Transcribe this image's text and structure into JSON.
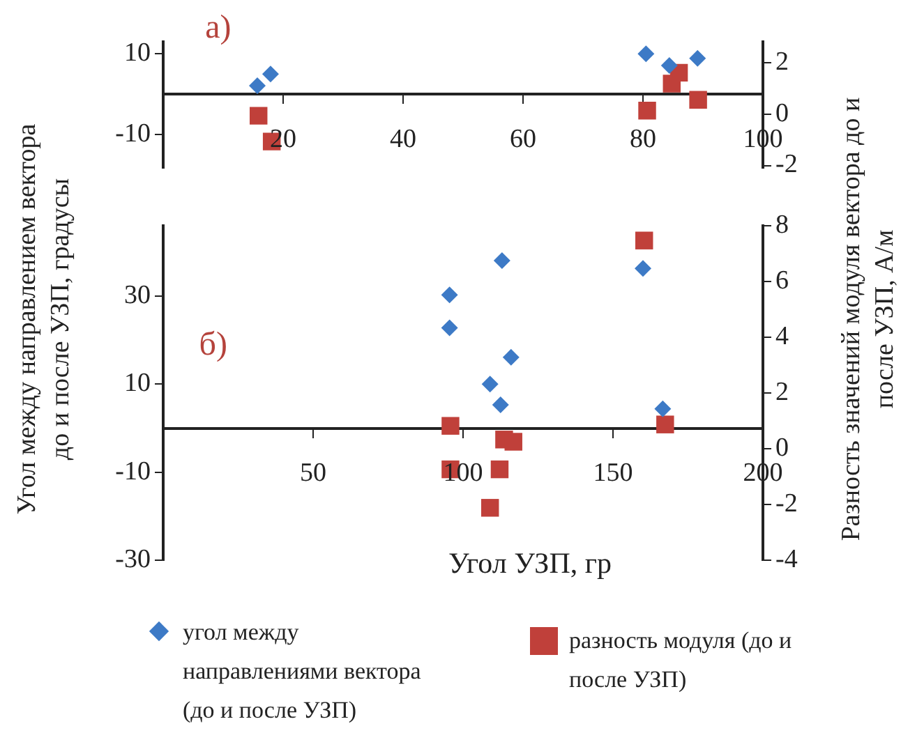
{
  "chart_data": [
    {
      "type": "scatter",
      "annotations": [
        "а)"
      ],
      "xlim": [
        0,
        100
      ],
      "xticks": [
        20,
        40,
        60,
        80,
        100
      ],
      "ylim": [
        -18.4,
        13
      ],
      "yticks": [
        -10,
        10
      ],
      "y2lim": [
        -2.1,
        2.8
      ],
      "y2ticks": [
        -2,
        0,
        2
      ],
      "grid": false,
      "legend": false,
      "series": [
        {
          "color": "#3d7ac6",
          "marker": "diamond",
          "x": [
            15.7,
            17.9,
            80.5,
            84.4,
            89.1
          ],
          "values": [
            2.1,
            5.0,
            10.0,
            7.1,
            8.9
          ]
        },
        {
          "color": "#c0403a",
          "marker": "square",
          "axis": "y2",
          "x": [
            15.9,
            18.1,
            80.7,
            84.8,
            86.0,
            89.2
          ],
          "values": [
            -0.07,
            -1.07,
            0.13,
            1.18,
            1.6,
            0.55
          ]
        }
      ]
    },
    {
      "type": "scatter",
      "annotations": [
        "б)"
      ],
      "xlabel": "Угол УЗП, гр",
      "ylabel": "Угол между направлением вектора до и после УЗП, градусы",
      "y2label": "Разность значений модуля вектора до и после УЗП, А/м",
      "xlim": [
        0,
        200
      ],
      "xticks": [
        50,
        100,
        150,
        200
      ],
      "ylim": [
        -30,
        46
      ],
      "yticks": [
        -30,
        -10,
        10,
        30
      ],
      "y2lim": [
        -4,
        8
      ],
      "y2ticks": [
        -4,
        -2,
        0,
        2,
        4,
        6,
        8
      ],
      "grid": false,
      "legend": "bottom",
      "series": [
        {
          "name": "угол между направлениями вектора (до и после УЗП)",
          "color": "#3d7ac6",
          "marker": "diamond",
          "x": [
            95.5,
            95.5,
            113,
            116,
            109,
            112.5,
            160,
            166.6
          ],
          "values": [
            30.3,
            22.8,
            38.1,
            16.1,
            10.0,
            5.3,
            36.3,
            4.4
          ]
        },
        {
          "name": "разность модуля (до и после УЗП)",
          "color": "#c0403a",
          "marker": "square",
          "axis": "y2",
          "x": [
            160.4,
            95.8,
            167.4,
            113.7,
            116.8,
            95.8,
            112.2,
            109
          ],
          "values": [
            7.47,
            0.82,
            0.87,
            0.33,
            0.25,
            -0.74,
            -0.74,
            -2.12
          ]
        }
      ]
    }
  ]
}
